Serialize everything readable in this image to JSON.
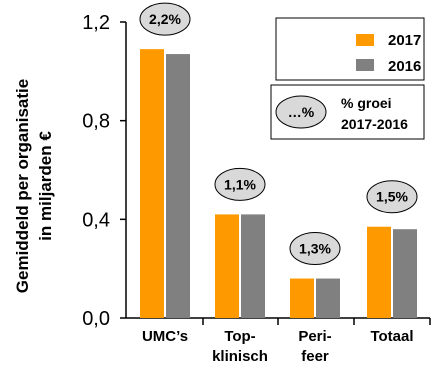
{
  "chart_data": {
    "type": "bar",
    "ylabel_line1": "Gemiddeld  per organisatie",
    "ylabel_line2": "in miljarden €",
    "ylim": [
      0,
      1.2
    ],
    "yticks": [
      "0,0",
      "0,4",
      "0,8",
      "1,2"
    ],
    "ytick_values": [
      0,
      0.4,
      0.8,
      1.2
    ],
    "categories": [
      {
        "lines": [
          "UMC’s"
        ]
      },
      {
        "lines": [
          "Top-",
          "klinisch"
        ]
      },
      {
        "lines": [
          "Peri-",
          "feer"
        ]
      },
      {
        "lines": [
          "Totaal"
        ]
      }
    ],
    "series": [
      {
        "name": "2017",
        "color": "#ff9900",
        "values": [
          1.09,
          0.42,
          0.16,
          0.37
        ]
      },
      {
        "name": "2016",
        "color": "#808080",
        "values": [
          1.07,
          0.42,
          0.16,
          0.36
        ]
      }
    ],
    "growth_labels": [
      "2,2%",
      "1,1%",
      "1,3%",
      "1,5%"
    ],
    "growth_legend": {
      "symbol": "…%",
      "line1": "% groei",
      "line2": "2017-2016"
    },
    "bubble_color": "#d9d9d9"
  }
}
